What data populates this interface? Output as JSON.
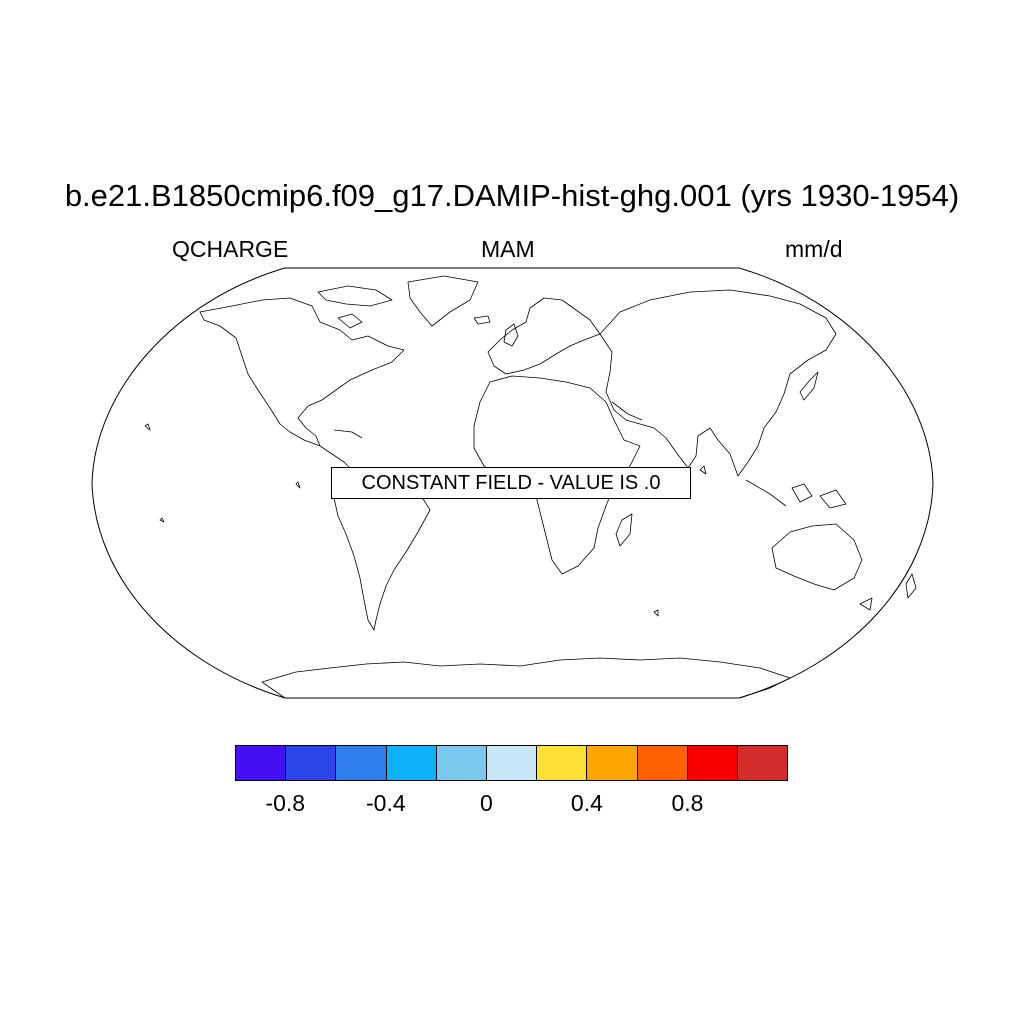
{
  "title": "b.e21.B1850cmip6.f09_g17.DAMIP-hist-ghg.001 (yrs 1930-1954)",
  "left_label": "QCHARGE",
  "center_label": "MAM",
  "right_label": "mm/d",
  "notice": "CONSTANT FIELD - VALUE IS .0",
  "projection": "Robinson",
  "colorbar": {
    "colors": [
      "#4410F2",
      "#2B46E6",
      "#2D7EEB",
      "#0DB2F8",
      "#79C8EE",
      "#C8E6F7",
      "#FDE035",
      "#FDA500",
      "#FD6000",
      "#F60000",
      "#D42B2B"
    ],
    "ticks": [
      {
        "label": "-0.8",
        "boundary": 1
      },
      {
        "label": "-0.4",
        "boundary": 3
      },
      {
        "label": "0",
        "boundary": 5
      },
      {
        "label": "0.4",
        "boundary": 7
      },
      {
        "label": "0.8",
        "boundary": 9
      }
    ]
  }
}
